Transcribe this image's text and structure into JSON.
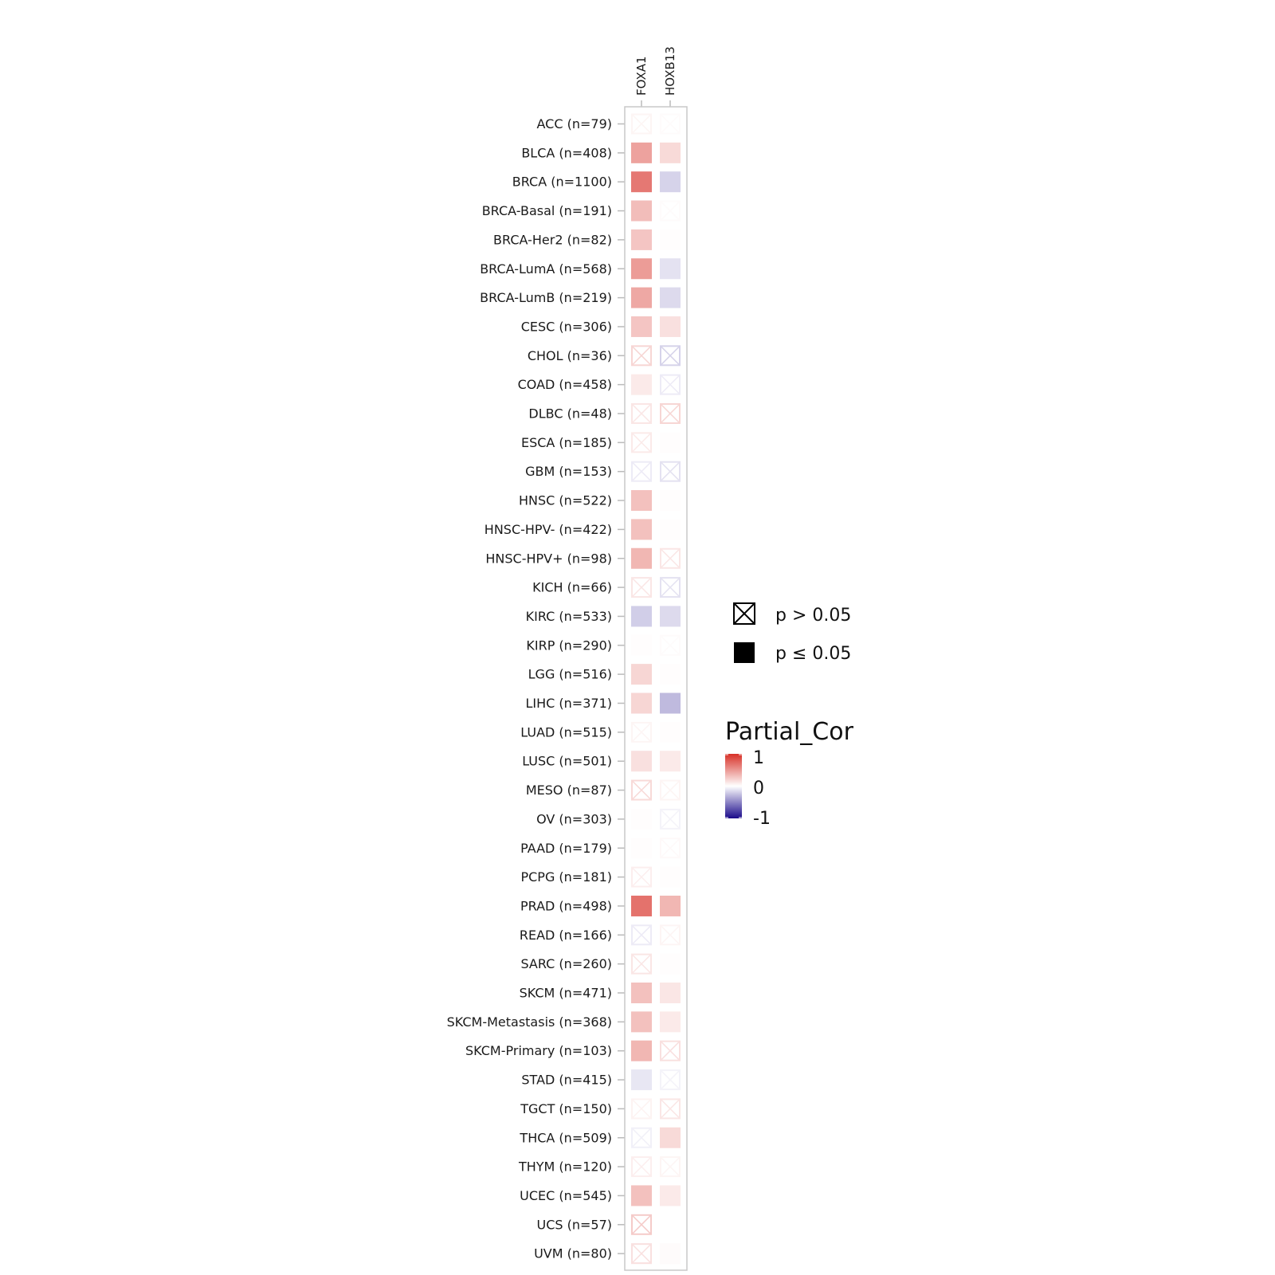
{
  "chart_data": {
    "type": "heatmap",
    "title": "",
    "columns": [
      "FOXA1",
      "HOXB13"
    ],
    "rows": [
      "ACC (n=79)",
      "BLCA (n=408)",
      "BRCA (n=1100)",
      "BRCA-Basal (n=191)",
      "BRCA-Her2 (n=82)",
      "BRCA-LumA (n=568)",
      "BRCA-LumB (n=219)",
      "CESC (n=306)",
      "CHOL (n=36)",
      "COAD (n=458)",
      "DLBC (n=48)",
      "ESCA (n=185)",
      "GBM (n=153)",
      "HNSC (n=522)",
      "HNSC-HPV- (n=422)",
      "HNSC-HPV+ (n=98)",
      "KICH (n=66)",
      "KIRC (n=533)",
      "KIRP (n=290)",
      "LGG (n=516)",
      "LIHC (n=371)",
      "LUAD (n=515)",
      "LUSC (n=501)",
      "MESO (n=87)",
      "OV (n=303)",
      "PAAD (n=179)",
      "PCPG (n=181)",
      "PRAD (n=498)",
      "READ (n=166)",
      "SARC (n=260)",
      "SKCM (n=471)",
      "SKCM-Metastasis (n=368)",
      "SKCM-Primary (n=103)",
      "STAD (n=415)",
      "TGCT (n=150)",
      "THCA (n=509)",
      "THYM (n=120)",
      "UCEC (n=545)",
      "UCS (n=57)",
      "UVM (n=80)"
    ],
    "values": [
      [
        0.05,
        0.02
      ],
      [
        0.45,
        0.18
      ],
      [
        0.65,
        -0.18
      ],
      [
        0.32,
        0.02
      ],
      [
        0.28,
        0.01
      ],
      [
        0.48,
        -0.12
      ],
      [
        0.42,
        -0.15
      ],
      [
        0.28,
        0.15
      ],
      [
        0.2,
        -0.18
      ],
      [
        0.1,
        -0.08
      ],
      [
        0.12,
        0.2
      ],
      [
        0.1,
        0.01
      ],
      [
        -0.08,
        -0.12
      ],
      [
        0.3,
        0.01
      ],
      [
        0.3,
        0.01
      ],
      [
        0.35,
        0.12
      ],
      [
        0.12,
        -0.12
      ],
      [
        -0.2,
        -0.15
      ],
      [
        0.01,
        0.02
      ],
      [
        0.2,
        0.01
      ],
      [
        0.2,
        -0.28
      ],
      [
        0.05,
        0.01
      ],
      [
        0.15,
        0.1
      ],
      [
        0.18,
        0.05
      ],
      [
        0.01,
        -0.05
      ],
      [
        0.01,
        0.03
      ],
      [
        0.08,
        0.01
      ],
      [
        0.68,
        0.35
      ],
      [
        -0.08,
        0.05
      ],
      [
        0.12,
        0.01
      ],
      [
        0.3,
        0.12
      ],
      [
        0.3,
        0.1
      ],
      [
        0.35,
        0.15
      ],
      [
        -0.1,
        -0.05
      ],
      [
        0.06,
        0.12
      ],
      [
        -0.06,
        0.18
      ],
      [
        0.08,
        0.05
      ],
      [
        0.3,
        0.1
      ],
      [
        0.25,
        0.0
      ],
      [
        0.15,
        0.02
      ]
    ],
    "significant": [
      [
        false,
        false
      ],
      [
        true,
        true
      ],
      [
        true,
        true
      ],
      [
        true,
        false
      ],
      [
        true,
        true
      ],
      [
        true,
        true
      ],
      [
        true,
        true
      ],
      [
        true,
        true
      ],
      [
        false,
        false
      ],
      [
        true,
        false
      ],
      [
        false,
        false
      ],
      [
        false,
        true
      ],
      [
        false,
        false
      ],
      [
        true,
        true
      ],
      [
        true,
        true
      ],
      [
        true,
        false
      ],
      [
        false,
        false
      ],
      [
        true,
        true
      ],
      [
        true,
        false
      ],
      [
        true,
        true
      ],
      [
        true,
        true
      ],
      [
        false,
        true
      ],
      [
        true,
        true
      ],
      [
        false,
        false
      ],
      [
        true,
        false
      ],
      [
        true,
        false
      ],
      [
        false,
        true
      ],
      [
        true,
        true
      ],
      [
        false,
        false
      ],
      [
        false,
        true
      ],
      [
        true,
        true
      ],
      [
        true,
        true
      ],
      [
        true,
        false
      ],
      [
        true,
        false
      ],
      [
        false,
        false
      ],
      [
        false,
        true
      ],
      [
        false,
        false
      ],
      [
        true,
        true
      ],
      [
        false,
        true
      ],
      [
        false,
        true
      ]
    ],
    "legend": {
      "p_not_sig": "p > 0.05",
      "p_sig": "p ≤ 0.05",
      "colorbar_title": "Partial_Cor",
      "colorbar_ticks": [
        "1",
        "0",
        "-1"
      ],
      "colorbar_range": [
        -1,
        1
      ],
      "colors": {
        "high": "#d73027",
        "mid": "#ffffff",
        "low": "#1a0a8a"
      }
    }
  }
}
